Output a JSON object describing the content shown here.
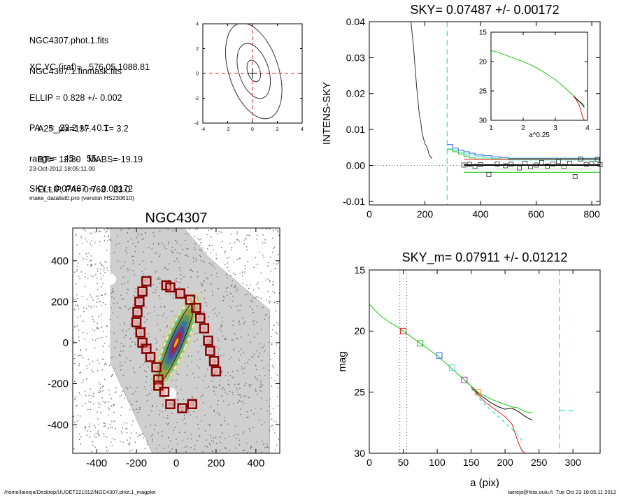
{
  "info": {
    "lines_a": [
      "NGC4307.phot.1.fits",
      "NGC4307.1.finmask.fits"
    ],
    "lines_b": [
      "XC,YC (iraf)=   576.05,1088.81",
      "ELLIP = 0.828 +/- 0.002",
      "PA    =  23.2 +/-   0.1",
      "range=   45.-   55.",
      "SKY= 0.07487 +/- 0.00172"
    ],
    "lines_c": [
      "A25_pix=137.4   T= 3.2",
      "BT=  12.80   MABS=-19.19",
      "ELLIP, PA= 0.763   23.0"
    ],
    "lines_d": [
      "23-Oct-2012 18:05:11.00",
      "make_datalist0.pro (version HS230610)"
    ]
  },
  "footer": {
    "left": "/home/laineja/Desktop/UUDET221012/NGC4307.phot.1_magplot",
    "right": "laineja@hiisi.oulu.fi  Tue Oct 23 18:05:11 2012"
  },
  "colors": {
    "red": "#e0201c",
    "green": "#22c51a",
    "blue": "#2a5fe0",
    "cyan": "#33dddd",
    "purple": "#a23a9a",
    "orange": "#f08a20",
    "darkred": "#8b0000"
  },
  "chart_data": [
    {
      "type": "line",
      "name": "contour-panel",
      "xlim": [
        -4,
        4
      ],
      "ylim": [
        -4,
        4
      ],
      "xticks": [
        "-4",
        "-2",
        "0",
        "2",
        "4"
      ],
      "yticks": [
        "-4",
        "-2",
        "0",
        "2",
        "4"
      ],
      "ellipse_semi_major": [
        0.9,
        2.3,
        4.0
      ],
      "ellipse_axis_ratio": [
        0.55,
        0.52,
        0.5
      ],
      "center": [
        0,
        0
      ]
    },
    {
      "type": "line",
      "title": "SKY= 0.07487 +/- 0.00172",
      "ylabel": "INTENS-SKY",
      "xlim": [
        0,
        830
      ],
      "ylim": [
        -0.011,
        0.04
      ],
      "xticks": [
        "0",
        "200",
        "400",
        "600",
        "800"
      ],
      "yticks": [
        "-0.01",
        "0.00",
        "0.01",
        "0.02",
        "0.03",
        "0.04"
      ],
      "vline_x": 280,
      "profile": {
        "x": [
          150,
          160,
          170,
          180,
          185,
          190,
          195,
          200,
          205,
          210,
          215,
          220,
          225
        ],
        "y": [
          0.04,
          0.032,
          0.022,
          0.014,
          0.012,
          0.009,
          0.0075,
          0.006,
          0.0055,
          0.0045,
          0.003,
          0.0025,
          0.0018
        ]
      },
      "points": {
        "x": [
          340,
          360,
          380,
          400,
          430,
          460,
          490,
          510,
          540,
          560,
          580,
          600,
          620,
          640,
          660,
          680,
          700,
          720,
          740,
          760,
          780,
          800,
          820,
          830
        ],
        "y": [
          0.0001,
          0.0003,
          -0.0003,
          0.0002,
          -0.0025,
          0.0004,
          -0.0001,
          0.0003,
          -0.0007,
          0.0006,
          -0.0004,
          0.0001,
          0.0008,
          -0.0002,
          0.0004,
          0.0011,
          -0.0003,
          0.0006,
          -0.0031,
          0.0018,
          0.0003,
          0.0005,
          0.0017,
          0.0002
        ]
      },
      "bars": [
        {
          "color": "blue",
          "x": [
            280,
            300,
            320,
            340,
            360,
            380,
            410,
            440,
            470,
            500,
            830
          ],
          "y": [
            0.0058,
            0.0048,
            0.0042,
            0.0038,
            0.0034,
            0.003,
            0.0027,
            0.0024,
            0.0022,
            0.002,
            0.002
          ]
        },
        {
          "color": "cyan",
          "x": [
            280,
            300,
            320,
            340,
            360,
            380,
            410,
            440,
            470,
            500,
            830
          ],
          "y": [
            0.0046,
            0.0041,
            0.0036,
            0.0032,
            0.0029,
            0.0026,
            0.0022,
            0.0019,
            0.0017,
            0.0015,
            0.0015
          ]
        },
        {
          "color": "green",
          "x": [
            280,
            300,
            320,
            340,
            360,
            380,
            830
          ],
          "y": [
            0.0045,
            0.0038,
            0.0032,
            0.0026,
            0.0021,
            0.0018,
            0.0018
          ]
        },
        {
          "color": "red",
          "x": [
            340,
            830
          ],
          "y": [
            0.0017,
            0.0017
          ]
        }
      ],
      "fit_black": {
        "x": [
          340,
          830
        ],
        "y": [
          0.0001,
          0.0001
        ]
      },
      "fit_green": {
        "x": [
          340,
          830
        ],
        "y": [
          -0.0019,
          -0.0019
        ]
      },
      "inset": {
        "xlabel": "a^0.25",
        "xlim": [
          1,
          4
        ],
        "ylim": [
          15,
          30
        ],
        "xticks": [
          "1",
          "2",
          "3",
          "4"
        ],
        "yticks": [
          "15",
          "20",
          "25",
          "30"
        ],
        "green": {
          "x": [
            1.0,
            1.3,
            1.6,
            2.0,
            2.4,
            2.7,
            3.0,
            3.2,
            3.4,
            3.6,
            3.75,
            3.85,
            3.9
          ],
          "y": [
            18.1,
            18.6,
            19.2,
            20.0,
            21.0,
            22.0,
            23.1,
            24.0,
            25.0,
            26.0,
            26.8,
            27.2,
            27.6
          ]
        },
        "red": {
          "x": [
            3.55,
            3.65,
            3.75,
            3.8,
            3.85,
            3.9
          ],
          "y": [
            25.8,
            26.5,
            27.5,
            28.5,
            29.5,
            30.0
          ]
        },
        "black": {
          "x": [
            3.55,
            3.7,
            3.8,
            3.85,
            3.9
          ],
          "y": [
            25.8,
            26.6,
            27.1,
            27.4,
            27.8
          ]
        }
      }
    },
    {
      "type": "scatter",
      "title": "NGC4307",
      "xlim": [
        -520,
        520
      ],
      "ylim": [
        -540,
        560
      ],
      "xticks": [
        "-400",
        "-200",
        "0",
        "200",
        "400"
      ],
      "yticks": [
        "-400",
        "-200",
        "0",
        "200",
        "400"
      ],
      "pa_deg": 23.2,
      "mask_squares": [
        [
          -150,
          300
        ],
        [
          -170,
          250
        ],
        [
          -185,
          200
        ],
        [
          -195,
          150
        ],
        [
          -200,
          100
        ],
        [
          -180,
          50
        ],
        [
          -170,
          0
        ],
        [
          -150,
          -30
        ],
        [
          -130,
          -70
        ],
        [
          -100,
          -120
        ],
        [
          -90,
          -180
        ],
        [
          -90,
          -210
        ],
        [
          -60,
          -240
        ],
        [
          -50,
          280
        ],
        [
          -30,
          270
        ],
        [
          20,
          240
        ],
        [
          70,
          210
        ],
        [
          100,
          170
        ],
        [
          120,
          120
        ],
        [
          140,
          70
        ],
        [
          160,
          10
        ],
        [
          170,
          -40
        ],
        [
          190,
          -90
        ],
        [
          200,
          -140
        ],
        [
          -30,
          -300
        ],
        [
          30,
          -320
        ],
        [
          80,
          -300
        ]
      ],
      "isophote_a": [
        40,
        80,
        120,
        160,
        200,
        250
      ],
      "ellipse_axis_ratio": 0.18
    },
    {
      "type": "line",
      "title": "SKY_m=  0.07911 +/- 0.01212",
      "xlabel": "a (pix)",
      "ylabel": "mag",
      "xlim": [
        0,
        340
      ],
      "ylim": [
        30,
        15
      ],
      "xticks": [
        "0",
        "50",
        "100",
        "150",
        "200",
        "250",
        "300"
      ],
      "yticks": [
        "15",
        "20",
        "25",
        "30"
      ],
      "vlines_dotted": [
        45,
        55
      ],
      "vline_cyan": 280,
      "cyan_seg": {
        "x": [
          280,
          300
        ],
        "y": [
          26.5,
          26.5
        ]
      },
      "green": {
        "x": [
          0,
          10,
          20,
          30,
          40,
          50,
          60,
          70,
          80,
          90,
          100,
          110,
          120,
          130,
          140,
          150,
          160,
          170,
          180,
          190,
          200,
          210,
          220,
          230,
          240
        ],
        "y": [
          17.8,
          18.4,
          18.9,
          19.3,
          19.6,
          20.0,
          20.4,
          20.8,
          21.2,
          21.6,
          22.0,
          22.5,
          23.0,
          23.5,
          24.0,
          24.5,
          25.0,
          25.3,
          25.6,
          25.8,
          26.0,
          26.2,
          26.3,
          26.6,
          26.7
        ]
      },
      "black": {
        "x": [
          140,
          150,
          160,
          170,
          180,
          190,
          200,
          210,
          220,
          230,
          240
        ],
        "y": [
          24.0,
          24.5,
          25.1,
          25.5,
          25.9,
          26.2,
          26.4,
          26.3,
          26.6,
          27.0,
          27.3
        ]
      },
      "red": {
        "x": [
          150,
          160,
          170,
          180,
          190,
          200,
          210,
          215,
          220,
          225,
          230
        ],
        "y": [
          24.6,
          25.2,
          25.8,
          26.2,
          26.6,
          27.0,
          27.6,
          28.4,
          29.2,
          29.8,
          30.0
        ]
      },
      "cyan": {
        "x": [
          150,
          160,
          170,
          180,
          190,
          200,
          210,
          220,
          225
        ],
        "y": [
          24.7,
          25.4,
          26.0,
          26.5,
          27.0,
          27.5,
          28.0,
          28.6,
          29.0
        ]
      },
      "squares": [
        {
          "x": 50,
          "y": 20.0,
          "color": "red"
        },
        {
          "x": 75,
          "y": 21.0,
          "color": "green"
        },
        {
          "x": 103,
          "y": 22.0,
          "color": "blue"
        },
        {
          "x": 122,
          "y": 23.0,
          "color": "cyan"
        },
        {
          "x": 140,
          "y": 24.0,
          "color": "purple"
        },
        {
          "x": 160,
          "y": 25.0,
          "color": "orange"
        }
      ]
    }
  ]
}
